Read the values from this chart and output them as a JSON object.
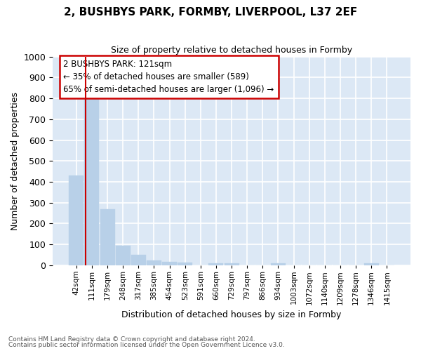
{
  "title1": "2, BUSHBYS PARK, FORMBY, LIVERPOOL, L37 2EF",
  "title2": "Size of property relative to detached houses in Formby",
  "xlabel": "Distribution of detached houses by size in Formby",
  "ylabel": "Number of detached properties",
  "categories": [
    "42sqm",
    "111sqm",
    "179sqm",
    "248sqm",
    "317sqm",
    "385sqm",
    "454sqm",
    "523sqm",
    "591sqm",
    "660sqm",
    "729sqm",
    "797sqm",
    "866sqm",
    "934sqm",
    "1003sqm",
    "1072sqm",
    "1140sqm",
    "1209sqm",
    "1278sqm",
    "1346sqm",
    "1415sqm"
  ],
  "values": [
    430,
    820,
    270,
    93,
    50,
    25,
    18,
    12,
    0,
    11,
    11,
    0,
    0,
    10,
    0,
    0,
    0,
    0,
    0,
    9,
    0
  ],
  "bar_color": "#b8d0e8",
  "bar_edgecolor": "#b8d0e8",
  "vline_color": "#cc0000",
  "vline_x": 0.575,
  "annotation_text": "2 BUSHBYS PARK: 121sqm\n← 35% of detached houses are smaller (589)\n65% of semi-detached houses are larger (1,096) →",
  "ylim": [
    0,
    1000
  ],
  "yticks": [
    0,
    100,
    200,
    300,
    400,
    500,
    600,
    700,
    800,
    900,
    1000
  ],
  "footer1": "Contains HM Land Registry data © Crown copyright and database right 2024.",
  "footer2": "Contains public sector information licensed under the Open Government Licence v3.0.",
  "bg_color": "#dce8f5",
  "title1_fontsize": 11,
  "title2_fontsize": 9,
  "ylabel_fontsize": 9,
  "xlabel_fontsize": 9
}
